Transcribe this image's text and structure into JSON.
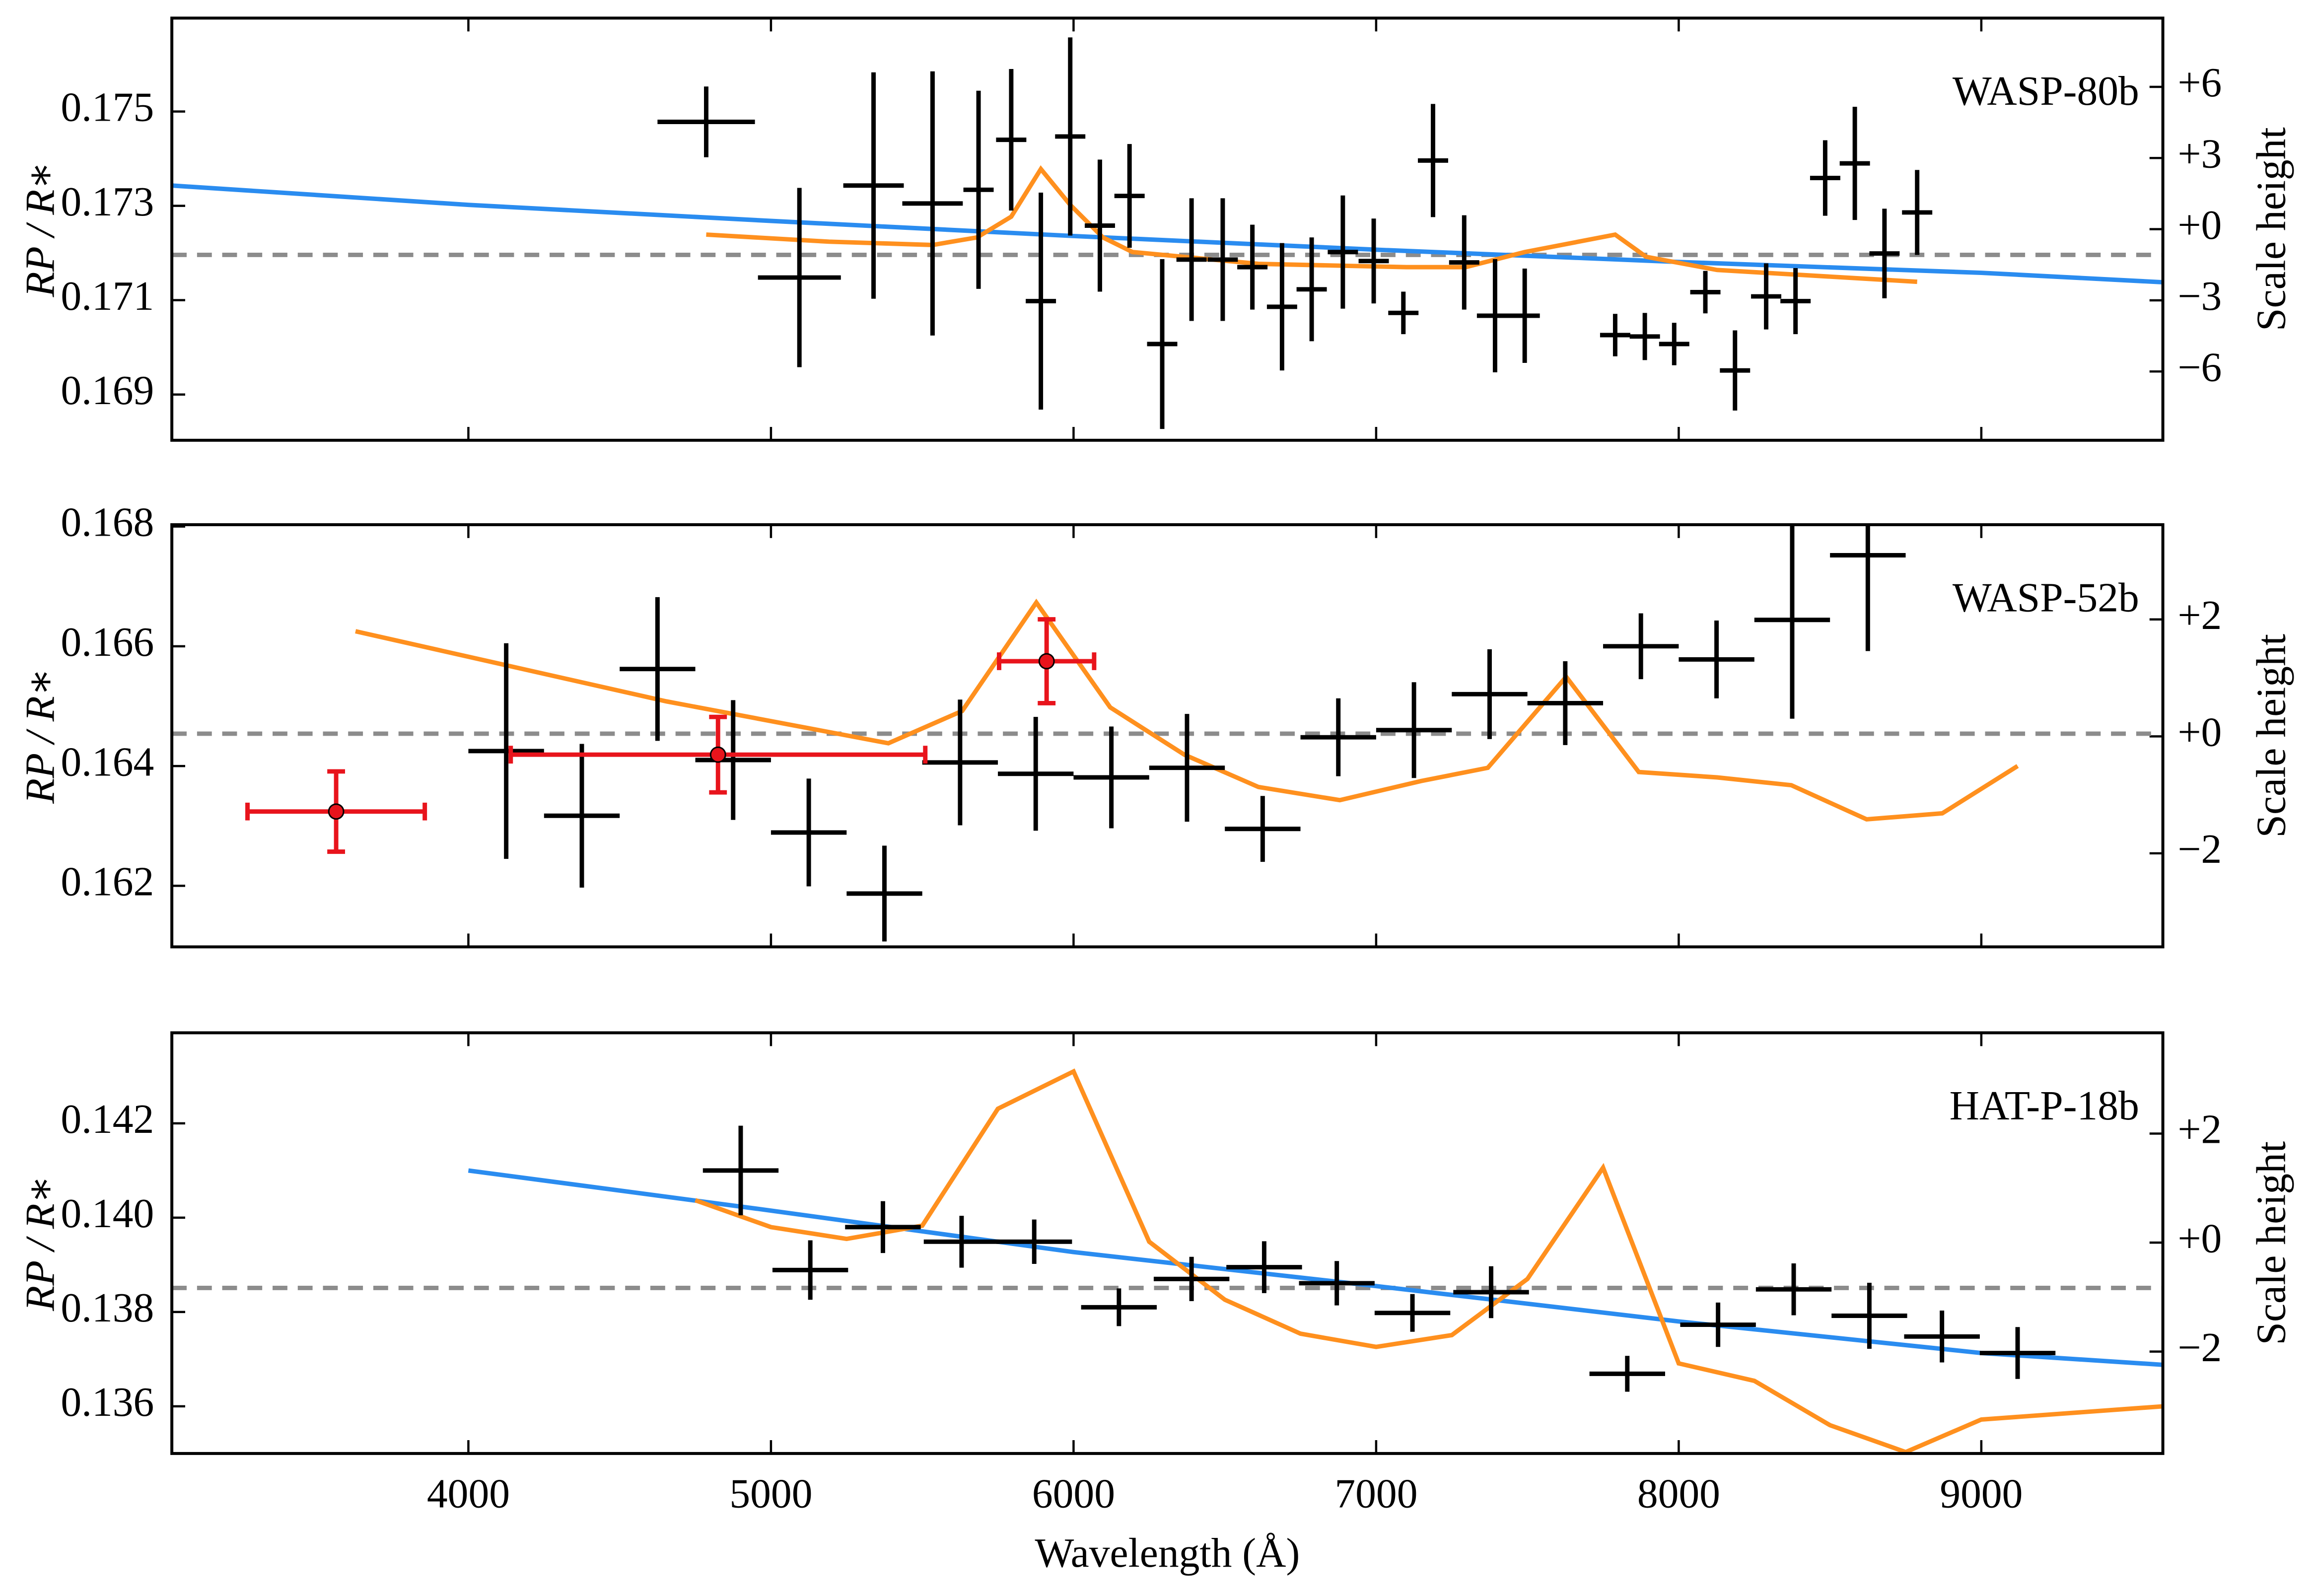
{
  "chart_data": [
    {
      "type": "errorbar",
      "title": "WASP-80b",
      "ylabel": "RP / R∗",
      "y2label": "Scale height",
      "xlim": [
        3020,
        9600
      ],
      "ylim": [
        0.16803,
        0.17698
      ],
      "y2lim": [
        -8.9,
        8.9
      ],
      "xticks": [
        4000,
        5000,
        6000,
        7000,
        8000,
        9000
      ],
      "yticks": [
        0.169,
        0.171,
        0.173,
        0.175
      ],
      "y2ticks": [
        {
          "value": -6,
          "label": "−6"
        },
        {
          "value": -3,
          "label": "−3"
        },
        {
          "value": 0,
          "label": "+0"
        },
        {
          "value": 3,
          "label": "+3"
        },
        {
          "value": 6,
          "label": "+6"
        }
      ],
      "reference_line": 0.17196,
      "reference_color": "#8c8c8c",
      "series": [
        {
          "type": "line",
          "color": "#2a8cf0",
          "x": [
            3020,
            4000,
            5000,
            6000,
            7000,
            8000,
            9000,
            9600
          ],
          "values": [
            0.17343,
            0.17302,
            0.17268,
            0.17236,
            0.17207,
            0.17181,
            0.17158,
            0.17138
          ]
        },
        {
          "type": "line",
          "color": "#ff901e",
          "x": [
            4786,
            5192,
            5534,
            5681,
            5794,
            5892,
            5989,
            6097,
            6195,
            6611,
            7100,
            7296,
            7491,
            7790,
            7892,
            8127,
            8788
          ],
          "values": [
            0.17239,
            0.17224,
            0.17217,
            0.17233,
            0.17277,
            0.17378,
            0.17302,
            0.17233,
            0.17202,
            0.17177,
            0.1717,
            0.1717,
            0.17202,
            0.17239,
            0.17192,
            0.17164,
            0.17139
          ]
        },
        {
          "type": "errorbar",
          "color": "#000000",
          "x": [
            4786,
            5094,
            5339,
            5534,
            5686,
            5794,
            5892,
            5989,
            6087,
            6185,
            6293,
            6390,
            6493,
            6591,
            6689,
            6787,
            6890,
            6992,
            7090,
            7188,
            7291,
            7393,
            7491,
            7790,
            7888,
            7985,
            8088,
            8186,
            8289,
            8386,
            8484,
            8582,
            8680,
            8788
          ],
          "values": [
            0.17478,
            0.17148,
            0.17343,
            0.17305,
            0.17334,
            0.1744,
            0.17098,
            0.17447,
            0.17258,
            0.17321,
            0.17007,
            0.17186,
            0.17186,
            0.1717,
            0.17086,
            0.17123,
            0.17202,
            0.17183,
            0.17073,
            0.17396,
            0.1718,
            0.17067,
            0.17067,
            0.17026,
            0.17023,
            0.17007,
            0.17117,
            0.16951,
            0.17108,
            0.17098,
            0.17359,
            0.1739,
            0.17199,
            0.17286
          ],
          "xerr": [
            161,
            137,
            100,
            100,
            50,
            50,
            50,
            50,
            50,
            50,
            50,
            50,
            50,
            50,
            50,
            50,
            50,
            50,
            50,
            50,
            50,
            60,
            50,
            50,
            50,
            50,
            50,
            50,
            50,
            50,
            50,
            50,
            50,
            50
          ],
          "yerr": [
            0.00075,
            0.0019,
            0.0024,
            0.0028,
            0.0021,
            0.0015,
            0.0023,
            0.0021,
            0.0014,
            0.0011,
            0.0018,
            0.0013,
            0.0013,
            0.0009,
            0.00135,
            0.0011,
            0.0012,
            0.0009,
            0.00045,
            0.0012,
            0.001,
            0.0012,
            0.001,
            0.00045,
            0.0005,
            0.00045,
            0.00045,
            0.00085,
            0.0007,
            0.0007,
            0.0008,
            0.0012,
            0.00095,
            0.0009
          ]
        }
      ]
    },
    {
      "type": "errorbar",
      "title": "WASP-52b",
      "ylabel": "RP / R∗",
      "y2label": "Scale height",
      "xlim": [
        3020,
        9600
      ],
      "ylim": [
        0.16098,
        0.16803
      ],
      "y2lim": [
        -3.6,
        3.62
      ],
      "xticks": [
        4000,
        5000,
        6000,
        7000,
        8000,
        9000
      ],
      "yticks": [
        0.162,
        0.164,
        0.166,
        0.168
      ],
      "y2ticks": [
        {
          "value": -2,
          "label": "−2"
        },
        {
          "value": 0,
          "label": "+0"
        },
        {
          "value": 2,
          "label": "+2"
        }
      ],
      "reference_line": 0.16454,
      "reference_color": "#8c8c8c",
      "series": [
        {
          "type": "line",
          "color": "#ff901e",
          "x": [
            3627,
            4654,
            5388,
            5632,
            5877,
            6121,
            6366,
            6611,
            6880,
            7149,
            7369,
            7628,
            7868,
            8127,
            8372,
            8621,
            8871,
            9120
          ],
          "values": [
            0.16625,
            0.16508,
            0.16438,
            0.16492,
            0.16673,
            0.16498,
            0.16419,
            0.16365,
            0.16343,
            0.16375,
            0.16397,
            0.16549,
            0.1639,
            0.16381,
            0.16368,
            0.16311,
            0.16321,
            0.164
          ]
        },
        {
          "type": "errorbar",
          "color": "#000000",
          "x": [
            4125,
            4375,
            4625,
            4875,
            5125,
            5375,
            5625,
            5875,
            6125,
            6375,
            6625,
            6875,
            7125,
            7375,
            7625,
            7875,
            8125,
            8375,
            8625
          ],
          "values": [
            0.16425,
            0.16317,
            0.16562,
            0.1641,
            0.16289,
            0.16187,
            0.16406,
            0.16387,
            0.16381,
            0.16397,
            0.16295,
            0.16448,
            0.1646,
            0.1652,
            0.16505,
            0.166,
            0.16578,
            0.16644,
            0.16752
          ],
          "xerr": [
            125,
            125,
            125,
            125,
            125,
            125,
            125,
            125,
            125,
            125,
            125,
            125,
            125,
            125,
            125,
            125,
            125,
            125,
            125
          ],
          "yerr": [
            0.0018,
            0.0012,
            0.0012,
            0.001,
            0.0009,
            0.0008,
            0.00105,
            0.00095,
            0.00085,
            0.0009,
            0.00055,
            0.00065,
            0.0008,
            0.00075,
            0.0007,
            0.00055,
            0.00065,
            0.00165,
            0.0016
          ]
        },
        {
          "type": "errorbar",
          "color": "#e8141c",
          "marker": "o",
          "x": [
            3563,
            4825,
            5911
          ],
          "values": [
            0.16324,
            0.16419,
            0.16575
          ],
          "xerr": [
            293,
            685,
            157
          ],
          "yerr": [
            0.00067,
            0.00063,
            0.0007
          ]
        }
      ]
    },
    {
      "type": "errorbar",
      "title": "HAT-P-18b",
      "ylabel": "RP / R∗",
      "y2label": "Scale height",
      "xlabel": "Wavelength (Å)",
      "xlim": [
        3020,
        9600
      ],
      "ylim": [
        0.135,
        0.14392
      ],
      "y2lim": [
        -3.87,
        3.85
      ],
      "xticks": [
        4000,
        5000,
        6000,
        7000,
        8000,
        9000
      ],
      "yticks": [
        0.136,
        0.138,
        {
          "value": 0.14,
          "label": "0.140"
        },
        0.142
      ],
      "y2ticks": [
        {
          "value": -2,
          "label": "−2"
        },
        {
          "value": 0,
          "label": "+0"
        },
        {
          "value": 2,
          "label": "+2"
        }
      ],
      "reference_line": 0.13851,
      "reference_color": "#8c8c8c",
      "series": [
        {
          "type": "line",
          "color": "#2a8cf0",
          "x": [
            4000,
            5000,
            6000,
            7000,
            8000,
            9000,
            9600
          ],
          "values": [
            0.141,
            0.14015,
            0.13927,
            0.13855,
            0.1378,
            0.13713,
            0.13688
          ]
        },
        {
          "type": "line",
          "color": "#ff901e",
          "x": [
            4750,
            5000,
            5250,
            5500,
            5750,
            6000,
            6250,
            6500,
            6750,
            7000,
            7250,
            7500,
            7750,
            8000,
            8250,
            8500,
            8750,
            9000,
            9600
          ],
          "values": [
            0.14037,
            0.1398,
            0.13955,
            0.13983,
            0.14231,
            0.1431,
            0.13949,
            0.13826,
            0.13754,
            0.13726,
            0.13751,
            0.1387,
            0.14106,
            0.13691,
            0.13654,
            0.1356,
            0.13503,
            0.13572,
            0.136
          ]
        },
        {
          "type": "errorbar",
          "color": "#000000",
          "x": [
            4900,
            5130,
            5370,
            5630,
            5870,
            6150,
            6390,
            6630,
            6870,
            7120,
            7380,
            7830,
            8130,
            8380,
            8630,
            8870,
            9120
          ],
          "values": [
            0.141,
            0.13889,
            0.1398,
            0.13949,
            0.13949,
            0.1381,
            0.1387,
            0.13895,
            0.13861,
            0.13798,
            0.13842,
            0.13669,
            0.13773,
            0.13848,
            0.13792,
            0.13748,
            0.13713
          ],
          "xerr": [
            125,
            125,
            125,
            125,
            125,
            125,
            125,
            125,
            125,
            125,
            125,
            125,
            125,
            125,
            125,
            125,
            125
          ],
          "yerr": [
            0.00095,
            0.00063,
            0.00055,
            0.00055,
            0.00047,
            0.0004,
            0.00047,
            0.00055,
            0.00047,
            0.0004,
            0.00055,
            0.00038,
            0.00047,
            0.00055,
            0.0007,
            0.00055,
            0.00055
          ]
        }
      ]
    }
  ]
}
